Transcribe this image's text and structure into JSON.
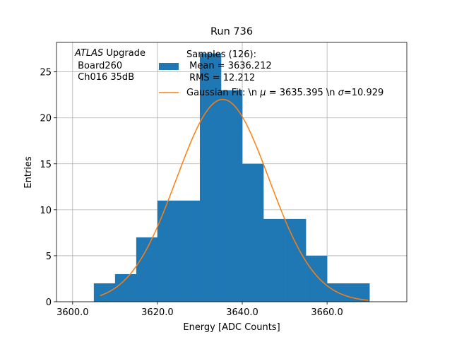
{
  "chart_data": {
    "type": "bar",
    "title": "Run 736",
    "xlabel": "Energy [ADC Counts]",
    "ylabel": "Entries",
    "xlim": [
      3596.2,
      3678.8
    ],
    "ylim": [
      0,
      28.2
    ],
    "xticks": [
      3600,
      3620,
      3640,
      3660
    ],
    "xtick_labels": [
      "3600.0",
      "3620.0",
      "3640.0",
      "3660.0"
    ],
    "yticks": [
      0,
      5,
      10,
      15,
      20,
      25
    ],
    "ytick_labels": [
      "0",
      "5",
      "10",
      "15",
      "20",
      "25"
    ],
    "grid": true,
    "bin_edges": [
      3605,
      3610,
      3615,
      3620,
      3625,
      3630,
      3635,
      3640,
      3645,
      3650,
      3655,
      3660,
      3665,
      3670
    ],
    "counts": [
      2,
      3,
      7,
      11,
      11,
      27,
      23,
      15,
      9,
      9,
      5,
      2,
      2
    ],
    "histogram_color": "#1f77b4",
    "fit": {
      "type": "gaussian",
      "mu": 3635.395,
      "sigma": 10.929,
      "amplitude": 22.0,
      "x_range": [
        3606.5,
        3669.7
      ],
      "color": "#ff7f0e"
    },
    "annotation": {
      "line1_italic": "ATLAS",
      "line1_rest": " Upgrade",
      "line2": " Board260",
      "line3": " Ch016 35dB"
    },
    "legend": {
      "placement": "top-center",
      "hist_lines": [
        "Samples (126):",
        " Mean = 3636.212",
        " RMS = 12.212"
      ],
      "fit_prefix": "Gaussian Fit: \\n ",
      "fit_mu_symbol": "μ",
      "fit_mid": " = 3635.395 \\n ",
      "fit_sigma_symbol": "σ",
      "fit_suffix": "=10.929"
    }
  }
}
